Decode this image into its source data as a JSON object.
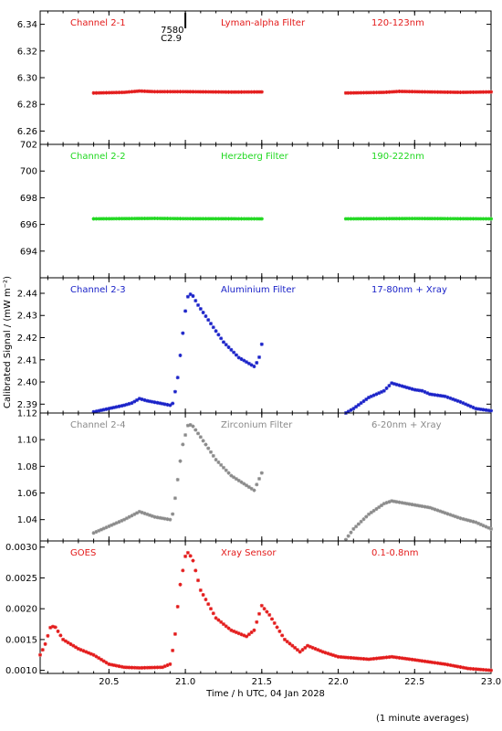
{
  "chart_data": {
    "type": "scatter",
    "xlabel": "Time / h UTC, 04 Jan 2028",
    "ylabel": "Calibrated Signal / (mW m⁻²)",
    "xlim": [
      20.05,
      23.0
    ],
    "xticks": [
      {
        "value": 20.5,
        "label": "20.5"
      },
      {
        "value": 21.0,
        "label": "21.0"
      },
      {
        "value": 21.5,
        "label": "21.5"
      },
      {
        "value": 22.0,
        "label": "22.0"
      },
      {
        "value": 22.5,
        "label": "22.5"
      },
      {
        "value": 23.0,
        "label": "23.0"
      }
    ],
    "marker": "asterisk",
    "grid": false,
    "flare_mark": {
      "x": 21.0,
      "labels": [
        "7580",
        "C2.9"
      ]
    },
    "panels": [
      {
        "labels": [
          "Channel 2-1",
          "Lyman-alpha Filter",
          "120-123nm"
        ],
        "color": "#e31a1a",
        "ylim": [
          6.25,
          6.35
        ],
        "yticks": [
          {
            "value": 6.26,
            "label": "6.26"
          },
          {
            "value": 6.28,
            "label": "6.28"
          },
          {
            "value": 6.3,
            "label": "6.30"
          },
          {
            "value": 6.32,
            "label": "6.32"
          },
          {
            "value": 6.34,
            "label": "6.34"
          }
        ],
        "segments": [
          {
            "start": 20.4,
            "end": 21.5,
            "shape": [
              [
                20.4,
                6.2885
              ],
              [
                20.6,
                6.289
              ],
              [
                20.7,
                6.29
              ],
              [
                20.8,
                6.2895
              ],
              [
                21.0,
                6.2895
              ],
              [
                21.3,
                6.2892
              ],
              [
                21.5,
                6.2893
              ]
            ]
          },
          {
            "start": 22.05,
            "end": 23.0,
            "shape": [
              [
                22.05,
                6.2885
              ],
              [
                22.3,
                6.289
              ],
              [
                22.4,
                6.2897
              ],
              [
                22.6,
                6.2893
              ],
              [
                22.8,
                6.289
              ],
              [
                23.0,
                6.2893
              ]
            ]
          }
        ]
      },
      {
        "labels": [
          "Channel 2-2",
          "Herzberg Filter",
          "190-222nm"
        ],
        "color": "#1fd81f",
        "ylim": [
          692.0,
          702.0
        ],
        "yticks": [
          {
            "value": 694,
            "label": "694"
          },
          {
            "value": 696,
            "label": "696"
          },
          {
            "value": 698,
            "label": "698"
          },
          {
            "value": 700,
            "label": "700"
          },
          {
            "value": 702,
            "label": "702"
          }
        ],
        "segments": [
          {
            "start": 20.4,
            "end": 21.5,
            "shape": [
              [
                20.4,
                696.42
              ],
              [
                20.8,
                696.45
              ],
              [
                21.0,
                696.43
              ],
              [
                21.5,
                696.42
              ]
            ]
          },
          {
            "start": 22.05,
            "end": 23.0,
            "shape": [
              [
                22.05,
                696.42
              ],
              [
                22.5,
                696.44
              ],
              [
                23.0,
                696.42
              ]
            ]
          }
        ]
      },
      {
        "labels": [
          "Channel 2-3",
          "Aluminium Filter",
          "17-80nm + Xray"
        ],
        "color": "#1a22c8",
        "ylim": [
          2.386,
          2.447
        ],
        "yticks": [
          {
            "value": 2.39,
            "label": "2.39"
          },
          {
            "value": 2.4,
            "label": "2.40"
          },
          {
            "value": 2.41,
            "label": "2.41"
          },
          {
            "value": 2.42,
            "label": "2.42"
          },
          {
            "value": 2.43,
            "label": "2.43"
          },
          {
            "value": 2.44,
            "label": "2.44"
          }
        ],
        "segments": [
          {
            "start": 20.4,
            "end": 21.5,
            "shape": [
              [
                20.4,
                2.3865
              ],
              [
                20.5,
                2.388
              ],
              [
                20.6,
                2.3895
              ],
              [
                20.65,
                2.3905
              ],
              [
                20.7,
                2.3925
              ],
              [
                20.75,
                2.3915
              ],
              [
                20.85,
                2.3902
              ],
              [
                20.9,
                2.3895
              ],
              [
                20.92,
                2.3905
              ],
              [
                20.95,
                2.402
              ],
              [
                20.98,
                2.42
              ],
              [
                21.01,
                2.438
              ],
              [
                21.04,
                2.44
              ],
              [
                21.08,
                2.435
              ],
              [
                21.15,
                2.428
              ],
              [
                21.25,
                2.418
              ],
              [
                21.35,
                2.411
              ],
              [
                21.45,
                2.407
              ],
              [
                21.48,
                2.41
              ],
              [
                21.5,
                2.417
              ]
            ]
          },
          {
            "start": 22.05,
            "end": 23.0,
            "shape": [
              [
                22.05,
                2.386
              ],
              [
                22.1,
                2.388
              ],
              [
                22.2,
                2.393
              ],
              [
                22.3,
                2.396
              ],
              [
                22.35,
                2.3995
              ],
              [
                22.4,
                2.3985
              ],
              [
                22.5,
                2.3965
              ],
              [
                22.55,
                2.396
              ],
              [
                22.6,
                2.3945
              ],
              [
                22.7,
                2.3935
              ],
              [
                22.8,
                2.391
              ],
              [
                22.9,
                2.388
              ],
              [
                23.0,
                2.387
              ]
            ]
          }
        ]
      },
      {
        "labels": [
          "Channel 2-4",
          "Zirconium Filter",
          "6-20nm + Xray"
        ],
        "color": "#8a8a8a",
        "ylim": [
          1.024,
          1.12
        ],
        "yticks": [
          {
            "value": 1.04,
            "label": "1.04"
          },
          {
            "value": 1.06,
            "label": "1.06"
          },
          {
            "value": 1.08,
            "label": "1.08"
          },
          {
            "value": 1.1,
            "label": "1.10"
          },
          {
            "value": 1.12,
            "label": "1.12"
          }
        ],
        "segments": [
          {
            "start": 20.4,
            "end": 21.5,
            "shape": [
              [
                20.4,
                1.03
              ],
              [
                20.5,
                1.035
              ],
              [
                20.6,
                1.04
              ],
              [
                20.65,
                1.043
              ],
              [
                20.7,
                1.046
              ],
              [
                20.8,
                1.042
              ],
              [
                20.9,
                1.04
              ],
              [
                20.92,
                1.045
              ],
              [
                20.95,
                1.07
              ],
              [
                20.98,
                1.095
              ],
              [
                21.02,
                1.112
              ],
              [
                21.05,
                1.11
              ],
              [
                21.1,
                1.102
              ],
              [
                21.2,
                1.085
              ],
              [
                21.3,
                1.073
              ],
              [
                21.45,
                1.062
              ],
              [
                21.5,
                1.075
              ]
            ]
          },
          {
            "start": 22.05,
            "end": 23.0,
            "shape": [
              [
                22.05,
                1.025
              ],
              [
                22.1,
                1.033
              ],
              [
                22.2,
                1.044
              ],
              [
                22.3,
                1.052
              ],
              [
                22.35,
                1.054
              ],
              [
                22.4,
                1.053
              ],
              [
                22.5,
                1.051
              ],
              [
                22.6,
                1.049
              ],
              [
                22.7,
                1.045
              ],
              [
                22.8,
                1.041
              ],
              [
                22.9,
                1.038
              ],
              [
                23.0,
                1.033
              ]
            ]
          }
        ]
      },
      {
        "labels": [
          "GOES",
          "Xray Sensor",
          "0.1-0.8nm"
        ],
        "color": "#e31a1a",
        "ylim": [
          0.00095,
          0.0031
        ],
        "yticks": [
          {
            "value": 0.001,
            "label": "0.0010"
          },
          {
            "value": 0.0015,
            "label": "0.0015"
          },
          {
            "value": 0.002,
            "label": "0.0020"
          },
          {
            "value": 0.0025,
            "label": "0.0025"
          },
          {
            "value": 0.003,
            "label": "0.0030"
          }
        ],
        "segments": [
          {
            "start": 20.05,
            "end": 23.0,
            "shape": [
              [
                20.05,
                0.00125
              ],
              [
                20.08,
                0.0014
              ],
              [
                20.12,
                0.00172
              ],
              [
                20.15,
                0.0017
              ],
              [
                20.2,
                0.0015
              ],
              [
                20.3,
                0.00135
              ],
              [
                20.4,
                0.00125
              ],
              [
                20.5,
                0.0011
              ],
              [
                20.6,
                0.00105
              ],
              [
                20.7,
                0.00104
              ],
              [
                20.85,
                0.00105
              ],
              [
                20.9,
                0.0011
              ],
              [
                20.93,
                0.0015
              ],
              [
                20.96,
                0.0023
              ],
              [
                21.0,
                0.00285
              ],
              [
                21.02,
                0.00292
              ],
              [
                21.05,
                0.00278
              ],
              [
                21.1,
                0.0023
              ],
              [
                21.2,
                0.00185
              ],
              [
                21.3,
                0.00165
              ],
              [
                21.4,
                0.00155
              ],
              [
                21.45,
                0.00165
              ],
              [
                21.5,
                0.00205
              ],
              [
                21.55,
                0.0019
              ],
              [
                21.65,
                0.0015
              ],
              [
                21.75,
                0.0013
              ],
              [
                21.8,
                0.0014
              ],
              [
                21.9,
                0.0013
              ],
              [
                22.0,
                0.00122
              ],
              [
                22.2,
                0.00118
              ],
              [
                22.35,
                0.00122
              ],
              [
                22.5,
                0.00117
              ],
              [
                22.7,
                0.0011
              ],
              [
                22.85,
                0.00103
              ],
              [
                23.0,
                0.001
              ]
            ]
          }
        ]
      }
    ]
  },
  "footer": {
    "note": "(1 minute averages)"
  }
}
